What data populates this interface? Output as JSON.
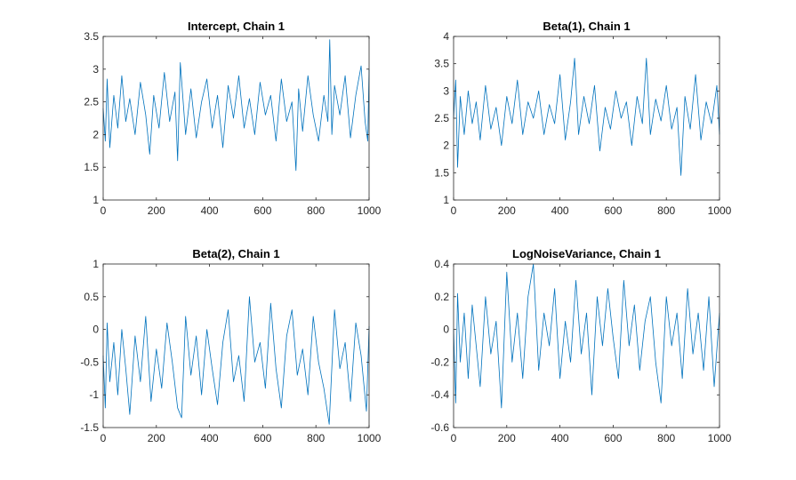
{
  "figure": {
    "background": "#ffffff",
    "line_color": "#0072bd"
  },
  "chart_data": [
    {
      "type": "line",
      "title": "Intercept, Chain 1",
      "xlabel": "",
      "ylabel": "",
      "xlim": [
        0,
        1000
      ],
      "ylim": [
        1,
        3.5
      ],
      "xticks": [
        0,
        200,
        400,
        600,
        800,
        1000
      ],
      "yticks": [
        1,
        1.5,
        2,
        2.5,
        3,
        3.5
      ],
      "xtick_labels": [
        "0",
        "200",
        "400",
        "600",
        "800",
        "1000"
      ],
      "ytick_labels": [
        "1",
        "1.5",
        "2",
        "2.5",
        "3",
        "3.5"
      ],
      "grid": false,
      "series": [
        {
          "x": [
            0,
            8,
            15,
            25,
            40,
            55,
            70,
            85,
            100,
            120,
            140,
            160,
            175,
            190,
            210,
            230,
            250,
            270,
            280,
            290,
            310,
            330,
            350,
            370,
            390,
            410,
            430,
            450,
            470,
            490,
            510,
            530,
            550,
            570,
            590,
            610,
            630,
            650,
            670,
            690,
            710,
            725,
            735,
            750,
            770,
            790,
            810,
            830,
            845,
            852,
            860,
            870,
            890,
            910,
            930,
            950,
            970,
            985,
            995,
            1000
          ],
          "y": [
            2.4,
            1.9,
            2.85,
            1.8,
            2.6,
            2.1,
            2.9,
            2.2,
            2.55,
            2.0,
            2.8,
            2.3,
            1.7,
            2.6,
            2.1,
            2.95,
            2.2,
            2.65,
            1.6,
            3.1,
            2.0,
            2.7,
            1.95,
            2.5,
            2.85,
            2.1,
            2.6,
            1.8,
            2.75,
            2.25,
            2.9,
            2.1,
            2.55,
            2.0,
            2.8,
            2.3,
            2.6,
            1.9,
            2.85,
            2.2,
            2.5,
            1.45,
            2.7,
            2.05,
            2.9,
            2.3,
            1.9,
            2.6,
            2.2,
            3.45,
            2.0,
            2.75,
            2.3,
            2.9,
            1.95,
            2.6,
            3.05,
            2.2,
            1.9,
            3.0
          ]
        }
      ]
    },
    {
      "type": "line",
      "title": "Beta(1), Chain 1",
      "xlabel": "",
      "ylabel": "",
      "xlim": [
        0,
        1000
      ],
      "ylim": [
        1,
        4
      ],
      "xticks": [
        0,
        200,
        400,
        600,
        800,
        1000
      ],
      "yticks": [
        1,
        1.5,
        2,
        2.5,
        3,
        3.5,
        4
      ],
      "xtick_labels": [
        "0",
        "200",
        "400",
        "600",
        "800",
        "1000"
      ],
      "ytick_labels": [
        "1",
        "1.5",
        "2",
        "2.5",
        "3",
        "3.5",
        "4"
      ],
      "grid": false,
      "series": [
        {
          "x": [
            0,
            8,
            15,
            25,
            40,
            55,
            70,
            85,
            100,
            120,
            140,
            160,
            180,
            200,
            220,
            240,
            260,
            280,
            300,
            320,
            340,
            360,
            380,
            400,
            420,
            440,
            455,
            470,
            490,
            510,
            530,
            550,
            570,
            590,
            610,
            630,
            650,
            670,
            690,
            710,
            725,
            740,
            760,
            780,
            800,
            820,
            840,
            855,
            870,
            890,
            910,
            930,
            950,
            970,
            990,
            1000
          ],
          "y": [
            2.5,
            3.2,
            1.6,
            2.9,
            2.2,
            3.0,
            2.4,
            2.8,
            2.1,
            3.1,
            2.3,
            2.7,
            2.0,
            2.9,
            2.4,
            3.2,
            2.2,
            2.8,
            2.5,
            3.0,
            2.2,
            2.75,
            2.4,
            3.3,
            2.1,
            2.8,
            3.6,
            2.2,
            2.9,
            2.4,
            3.1,
            1.9,
            2.7,
            2.3,
            3.0,
            2.5,
            2.8,
            2.0,
            2.9,
            2.4,
            3.6,
            2.2,
            2.85,
            2.45,
            3.1,
            2.3,
            2.7,
            1.45,
            2.9,
            2.3,
            3.3,
            2.1,
            2.8,
            2.4,
            3.1,
            2.2
          ]
        }
      ]
    },
    {
      "type": "line",
      "title": "Beta(2), Chain 1",
      "xlabel": "",
      "ylabel": "",
      "xlim": [
        0,
        1000
      ],
      "ylim": [
        -1.5,
        1
      ],
      "xticks": [
        0,
        200,
        400,
        600,
        800,
        1000
      ],
      "yticks": [
        -1.5,
        -1,
        -0.5,
        0,
        0.5,
        1
      ],
      "xtick_labels": [
        "0",
        "200",
        "400",
        "600",
        "800",
        "1000"
      ],
      "ytick_labels": [
        "-1.5",
        "-1",
        "-0.5",
        "0",
        "0.5",
        "1"
      ],
      "grid": false,
      "series": [
        {
          "x": [
            0,
            8,
            15,
            25,
            40,
            55,
            70,
            85,
            100,
            120,
            140,
            160,
            180,
            200,
            220,
            240,
            260,
            280,
            295,
            310,
            330,
            350,
            370,
            390,
            410,
            430,
            450,
            470,
            490,
            510,
            530,
            550,
            570,
            590,
            610,
            630,
            650,
            670,
            690,
            710,
            730,
            750,
            770,
            790,
            810,
            830,
            850,
            870,
            890,
            910,
            930,
            950,
            970,
            990,
            1000
          ],
          "y": [
            -0.4,
            -1.2,
            0.1,
            -0.8,
            -0.2,
            -1.0,
            0.0,
            -0.6,
            -1.3,
            -0.1,
            -0.8,
            0.2,
            -1.1,
            -0.3,
            -0.9,
            0.1,
            -0.5,
            -1.2,
            -1.35,
            0.2,
            -0.7,
            -0.1,
            -1.0,
            0.0,
            -0.6,
            -1.15,
            -0.2,
            0.3,
            -0.8,
            -0.4,
            -1.1,
            0.5,
            -0.5,
            -0.2,
            -0.9,
            0.4,
            -0.6,
            -1.2,
            -0.1,
            0.3,
            -0.7,
            -0.3,
            -1.0,
            0.2,
            -0.5,
            -0.9,
            -1.45,
            0.3,
            -0.6,
            -0.2,
            -1.1,
            0.1,
            -0.4,
            -1.25,
            0.05
          ]
        }
      ]
    },
    {
      "type": "line",
      "title": "LogNoiseVariance, Chain 1",
      "xlabel": "",
      "ylabel": "",
      "xlim": [
        0,
        1000
      ],
      "ylim": [
        -0.6,
        0.4
      ],
      "xticks": [
        0,
        200,
        400,
        600,
        800,
        1000
      ],
      "yticks": [
        -0.6,
        -0.4,
        -0.2,
        0,
        0.2,
        0.4
      ],
      "xtick_labels": [
        "0",
        "200",
        "400",
        "600",
        "800",
        "1000"
      ],
      "ytick_labels": [
        "-0.6",
        "-0.4",
        "-0.2",
        "0",
        "0.2",
        "0.4"
      ],
      "grid": false,
      "series": [
        {
          "x": [
            0,
            8,
            15,
            25,
            40,
            55,
            70,
            85,
            100,
            120,
            140,
            160,
            180,
            200,
            220,
            240,
            260,
            280,
            300,
            320,
            340,
            360,
            380,
            400,
            420,
            440,
            460,
            480,
            500,
            520,
            540,
            560,
            580,
            600,
            620,
            640,
            660,
            680,
            700,
            720,
            740,
            760,
            780,
            800,
            820,
            840,
            860,
            880,
            900,
            920,
            940,
            960,
            980,
            1000
          ],
          "y": [
            0.0,
            -0.45,
            0.22,
            -0.2,
            0.1,
            -0.3,
            0.15,
            -0.1,
            -0.35,
            0.2,
            -0.15,
            0.05,
            -0.48,
            0.35,
            -0.2,
            0.1,
            -0.3,
            0.2,
            0.4,
            -0.25,
            0.1,
            -0.1,
            0.25,
            -0.3,
            0.05,
            -0.2,
            0.3,
            -0.15,
            0.1,
            -0.4,
            0.2,
            -0.1,
            0.25,
            -0.05,
            -0.3,
            0.3,
            -0.1,
            0.15,
            -0.25,
            0.05,
            0.2,
            -0.2,
            -0.45,
            0.2,
            -0.1,
            0.1,
            -0.3,
            0.25,
            -0.15,
            0.1,
            -0.25,
            0.2,
            -0.35,
            0.1
          ]
        }
      ]
    }
  ]
}
